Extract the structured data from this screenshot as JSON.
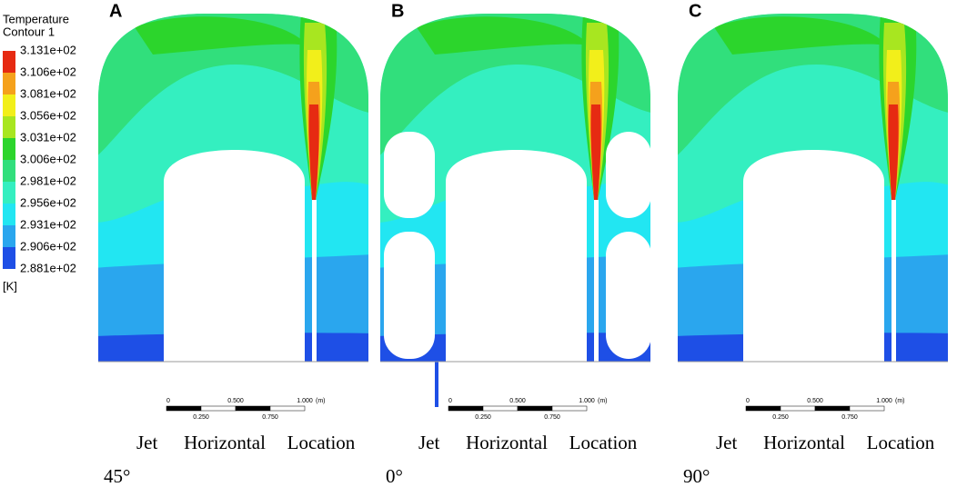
{
  "legend": {
    "title": "Temperature",
    "subtitle": "Contour 1",
    "unit": "[K]",
    "labels": [
      "3.131e+02",
      "3.106e+02",
      "3.081e+02",
      "3.056e+02",
      "3.031e+02",
      "3.006e+02",
      "2.981e+02",
      "2.956e+02",
      "2.931e+02",
      "2.906e+02",
      "2.881e+02"
    ],
    "colors": [
      "#e62a12",
      "#f5a11c",
      "#f2ef1a",
      "#a8e620",
      "#2cd52c",
      "#31df7c",
      "#34efc0",
      "#22e6f2",
      "#2aa6ee",
      "#1e4fe6"
    ]
  },
  "panels": [
    {
      "label": "A",
      "caption": [
        "Jet",
        "Horizontal",
        "Location"
      ],
      "angle": "45°"
    },
    {
      "label": "B",
      "caption": [
        "Jet",
        "Horizontal",
        "Location"
      ],
      "angle": "0°"
    },
    {
      "label": "C",
      "caption": [
        "Jet",
        "Horizontal",
        "Location"
      ],
      "angle": "90°"
    }
  ],
  "scale_bar": {
    "unit": "(m)",
    "top_labels": [
      "0",
      "0.500",
      "1.000"
    ],
    "bottom_labels": [
      "0.250",
      "0.750"
    ]
  }
}
